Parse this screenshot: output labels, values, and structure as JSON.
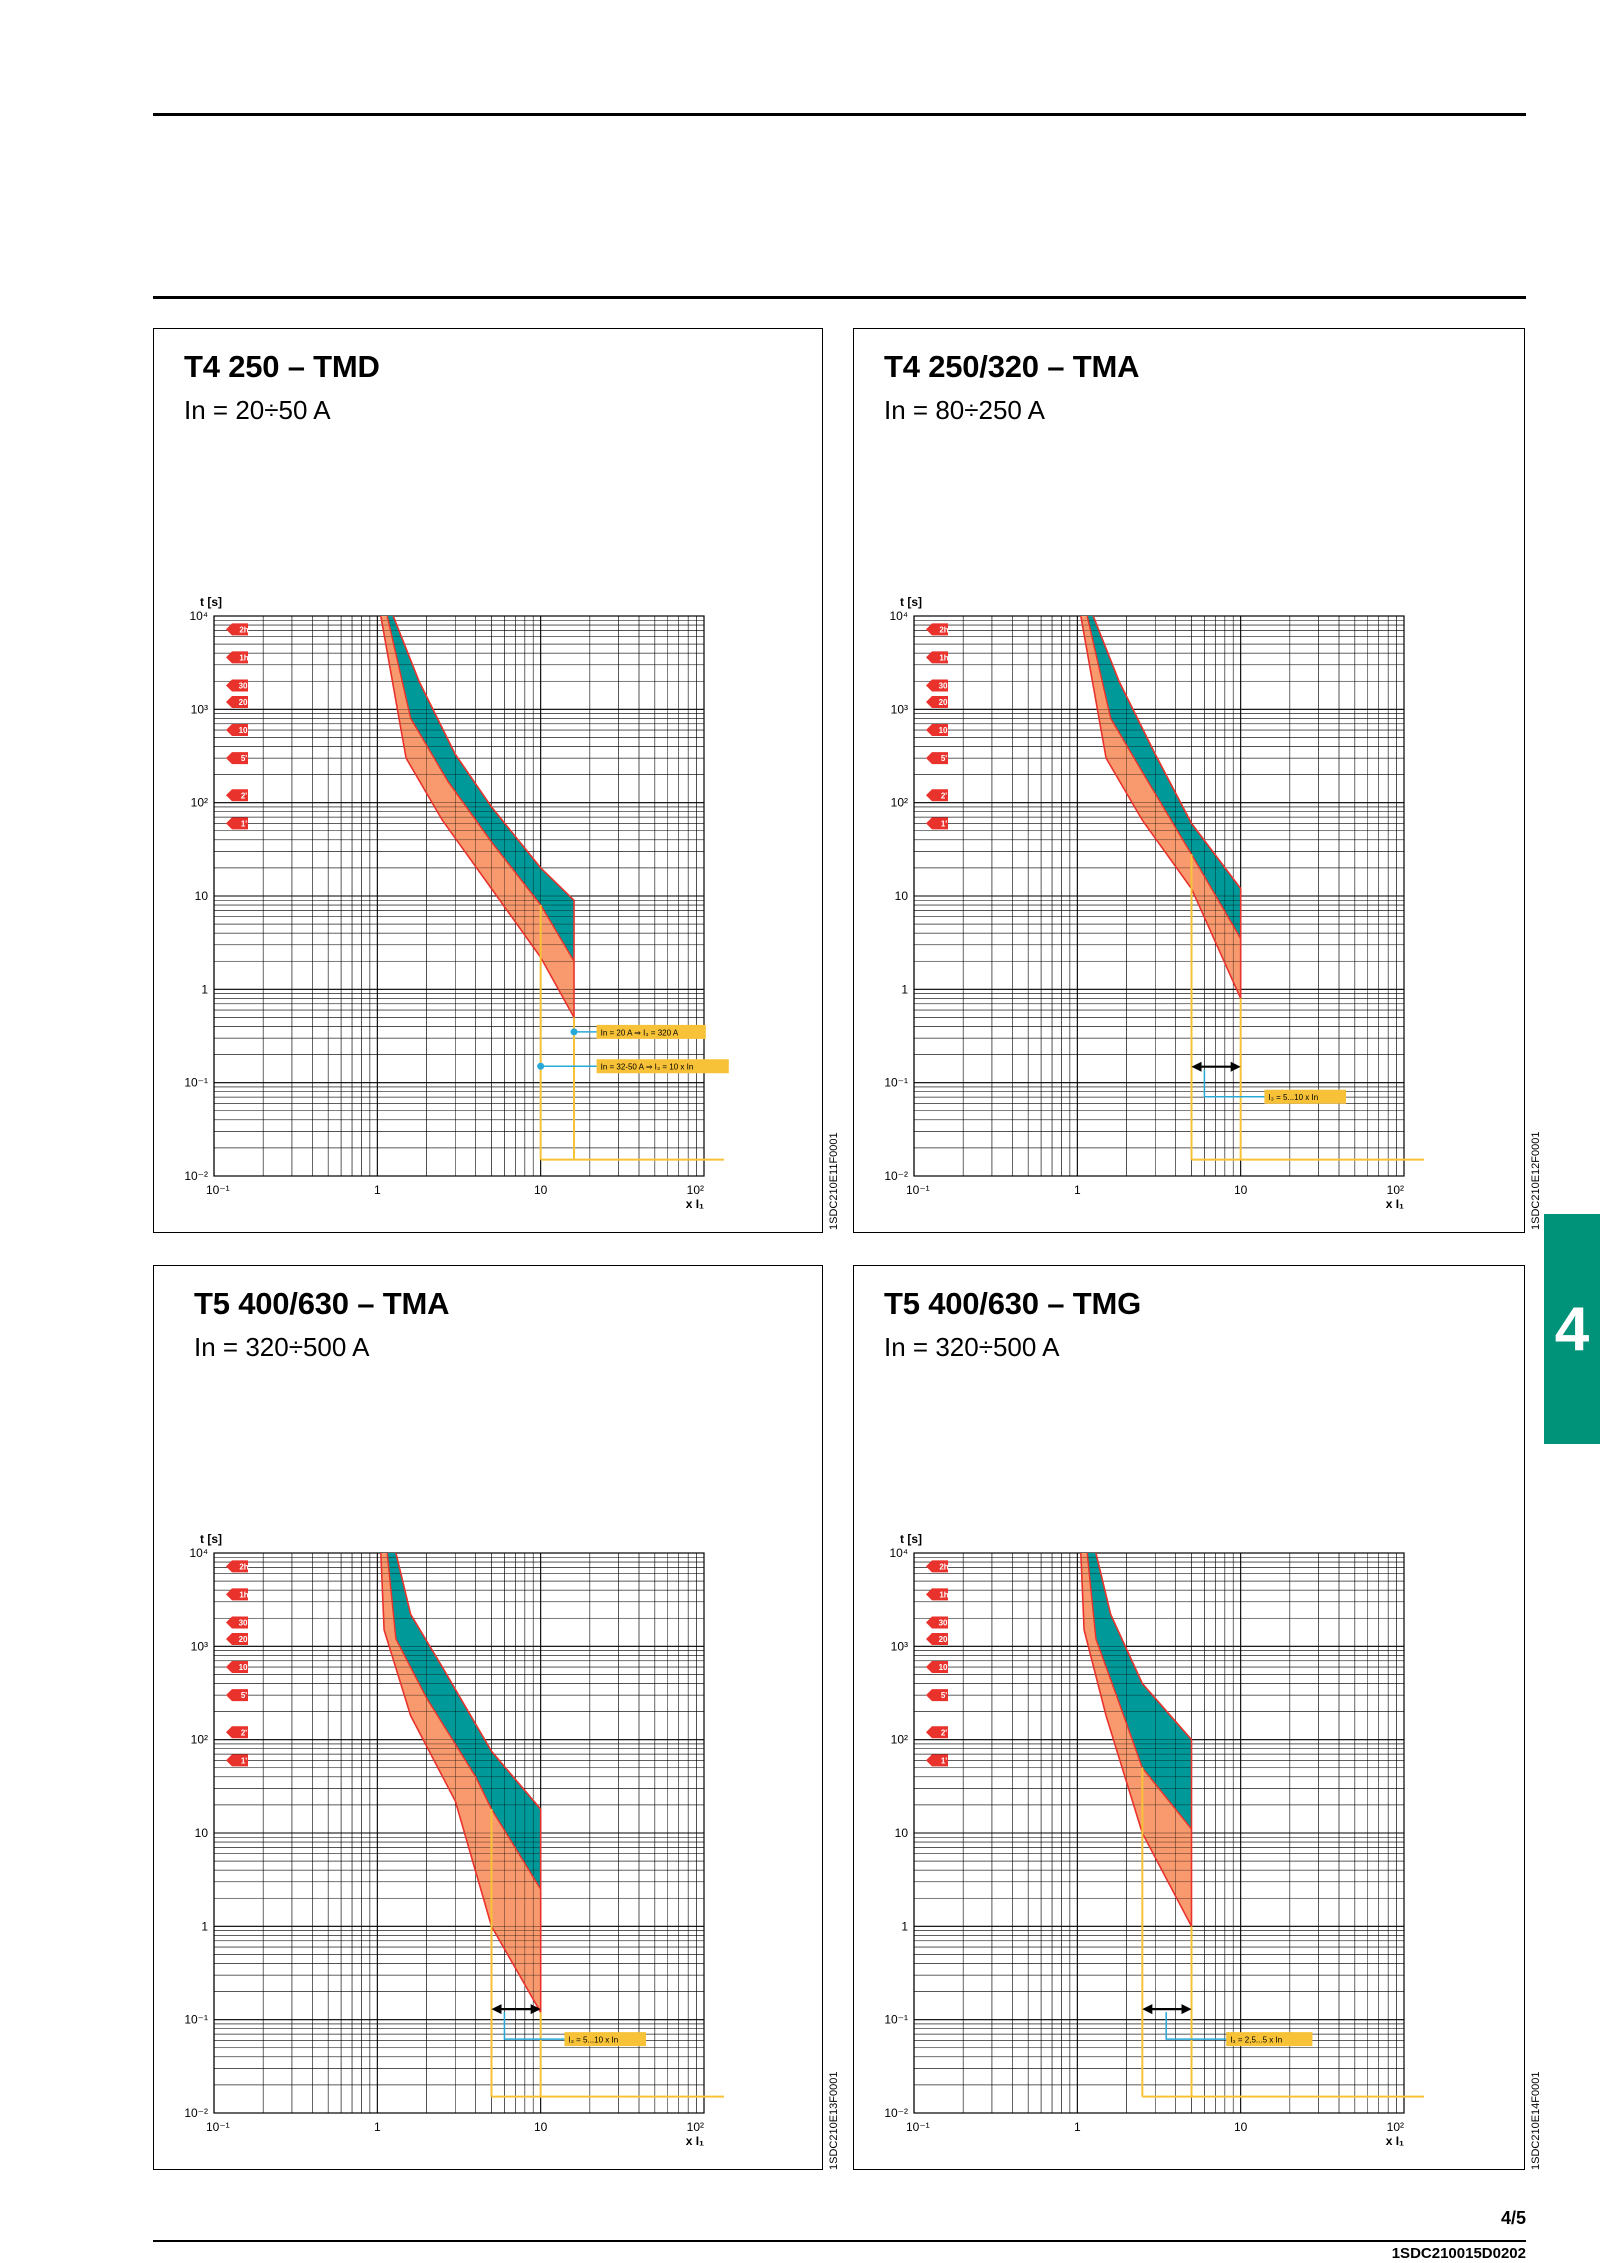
{
  "page": {
    "number": "4/5",
    "doc_code": "1SDC210015D0202",
    "side_tab": "4"
  },
  "colors": {
    "teal": "#00999a",
    "orange": "#f99a6e",
    "red_line": "#e9322c",
    "yellow": "#f7c237",
    "cyan": "#29a8d8",
    "tab_green": "#00937a"
  },
  "panels": [
    {
      "title": "T4 250 – TMD",
      "subtitle": "In = 20÷50 A",
      "code": "1SDC210E11F0001",
      "chart_data": {
        "type": "line",
        "ylabel": "t [s]",
        "xlabel": "x I₁",
        "x_ticks": [
          "10⁻¹",
          "1",
          "10",
          "10²"
        ],
        "y_ticks": [
          "10⁴",
          "10³",
          "10²",
          "10",
          "1",
          "10⁻¹",
          "10⁻²"
        ],
        "xlim": [
          0.1,
          100
        ],
        "ylim": [
          0.01,
          10000
        ],
        "time_markers": [
          "2h",
          "1h",
          "30'",
          "20'",
          "10'",
          "5'",
          "2'",
          "1'"
        ],
        "time_marker_seconds": [
          7200,
          3600,
          1800,
          1200,
          600,
          300,
          120,
          60
        ],
        "thermal_low": [
          [
            1.05,
            10000
          ],
          [
            1.5,
            300
          ],
          [
            2.5,
            65
          ],
          [
            5,
            12
          ],
          [
            10,
            2.2
          ],
          [
            16,
            0.5
          ]
        ],
        "thermal_mid": [
          [
            1.15,
            10000
          ],
          [
            1.6,
            800
          ],
          [
            2.7,
            170
          ],
          [
            5,
            38
          ],
          [
            10,
            8
          ],
          [
            16,
            2
          ]
        ],
        "thermal_high": [
          [
            1.25,
            10000
          ],
          [
            1.8,
            2000
          ],
          [
            3,
            330
          ],
          [
            5,
            90
          ],
          [
            10,
            20
          ],
          [
            16,
            9
          ]
        ],
        "magnetic_lines": [
          10,
          16
        ],
        "tail_time": 0.015,
        "annotations": [
          {
            "text": "In = 20 A ⇒ I₃ = 320 A",
            "x": 16,
            "y": 0.35
          },
          {
            "text": "In = 32-50 A ⇒ I₃ = 10 x In",
            "x": 10,
            "y": 0.15
          }
        ]
      }
    },
    {
      "title": "T4 250/320 – TMA",
      "subtitle": "In = 80÷250 A",
      "code": "1SDC210E12F0001",
      "chart_data": {
        "type": "line",
        "ylabel": "t [s]",
        "xlabel": "x I₁",
        "x_ticks": [
          "10⁻¹",
          "1",
          "10",
          "10²"
        ],
        "y_ticks": [
          "10⁴",
          "10³",
          "10²",
          "10",
          "1",
          "10⁻¹",
          "10⁻²"
        ],
        "xlim": [
          0.1,
          100
        ],
        "ylim": [
          0.01,
          10000
        ],
        "time_markers": [
          "2h",
          "1h",
          "30'",
          "20'",
          "10'",
          "5'",
          "2'",
          "1'"
        ],
        "time_marker_seconds": [
          7200,
          3600,
          1800,
          1200,
          600,
          300,
          120,
          60
        ],
        "thermal_low": [
          [
            1.05,
            10000
          ],
          [
            1.5,
            300
          ],
          [
            2.5,
            65
          ],
          [
            5,
            12
          ],
          [
            10,
            0.8
          ]
        ],
        "thermal_mid": [
          [
            1.15,
            10000
          ],
          [
            1.6,
            800
          ],
          [
            2.7,
            170
          ],
          [
            5,
            28
          ],
          [
            10,
            3.5
          ]
        ],
        "thermal_high": [
          [
            1.25,
            10000
          ],
          [
            1.8,
            2000
          ],
          [
            3,
            330
          ],
          [
            5,
            60
          ],
          [
            10,
            12
          ]
        ],
        "magnetic_lines": [
          5,
          10
        ],
        "tail_time": 0.015,
        "annotations": [
          {
            "text": "I₃ = 5...10 x In",
            "x": 6,
            "y": 0.08
          }
        ]
      }
    },
    {
      "title": "T5 400/630 – TMA",
      "subtitle": "In = 320÷500 A",
      "code": "1SDC210E13F0001",
      "chart_data": {
        "type": "line",
        "ylabel": "t [s]",
        "xlabel": "x I₁",
        "x_ticks": [
          "10⁻¹",
          "1",
          "10",
          "10²"
        ],
        "y_ticks": [
          "10⁴",
          "10³",
          "10²",
          "10",
          "1",
          "10⁻¹",
          "10⁻²"
        ],
        "xlim": [
          0.1,
          100
        ],
        "ylim": [
          0.01,
          10000
        ],
        "time_markers": [
          "2h",
          "1h",
          "30'",
          "20'",
          "10'",
          "5'",
          "2'",
          "1'"
        ],
        "time_marker_seconds": [
          7200,
          3600,
          1800,
          1200,
          600,
          300,
          120,
          60
        ],
        "thermal_low": [
          [
            1.05,
            10000
          ],
          [
            1.1,
            1500
          ],
          [
            1.6,
            180
          ],
          [
            3,
            22
          ],
          [
            5,
            1
          ],
          [
            10,
            0.12
          ]
        ],
        "thermal_mid": [
          [
            1.15,
            10000
          ],
          [
            1.3,
            1200
          ],
          [
            2,
            280
          ],
          [
            4,
            40
          ],
          [
            5,
            18
          ],
          [
            10,
            2.5
          ]
        ],
        "thermal_high": [
          [
            1.3,
            10000
          ],
          [
            1.6,
            2200
          ],
          [
            2.5,
            600
          ],
          [
            5,
            75
          ],
          [
            10,
            18
          ]
        ],
        "magnetic_lines": [
          5,
          10
        ],
        "tail_time": 0.015,
        "annotations": [
          {
            "text": "I₃ = 5...10 x In",
            "x": 6,
            "y": 0.07
          }
        ]
      }
    },
    {
      "title": "T5 400/630 – TMG",
      "subtitle": "In = 320÷500 A",
      "code": "1SDC210E14F0001",
      "chart_data": {
        "type": "line",
        "ylabel": "t [s]",
        "xlabel": "x I₁",
        "x_ticks": [
          "10⁻¹",
          "1",
          "10",
          "10²"
        ],
        "y_ticks": [
          "10⁴",
          "10³",
          "10²",
          "10",
          "1",
          "10⁻¹",
          "10⁻²"
        ],
        "xlim": [
          0.1,
          100
        ],
        "ylim": [
          0.01,
          10000
        ],
        "time_markers": [
          "2h",
          "1h",
          "30'",
          "20'",
          "10'",
          "5'",
          "2'",
          "1'"
        ],
        "time_marker_seconds": [
          7200,
          3600,
          1800,
          1200,
          600,
          300,
          120,
          60
        ],
        "thermal_low": [
          [
            1.05,
            10000
          ],
          [
            1.1,
            1500
          ],
          [
            1.5,
            180
          ],
          [
            2.5,
            10
          ],
          [
            5,
            1
          ]
        ],
        "thermal_mid": [
          [
            1.15,
            10000
          ],
          [
            1.3,
            1200
          ],
          [
            1.8,
            250
          ],
          [
            2.5,
            50
          ],
          [
            5,
            11
          ]
        ],
        "thermal_high": [
          [
            1.3,
            10000
          ],
          [
            1.6,
            2200
          ],
          [
            2.5,
            400
          ],
          [
            5,
            100
          ]
        ],
        "magnetic_lines": [
          2.5,
          5
        ],
        "tail_time": 0.015,
        "annotations": [
          {
            "text": "I₃ = 2,5...5 x In",
            "x": 3.5,
            "y": 0.07
          }
        ]
      }
    }
  ]
}
